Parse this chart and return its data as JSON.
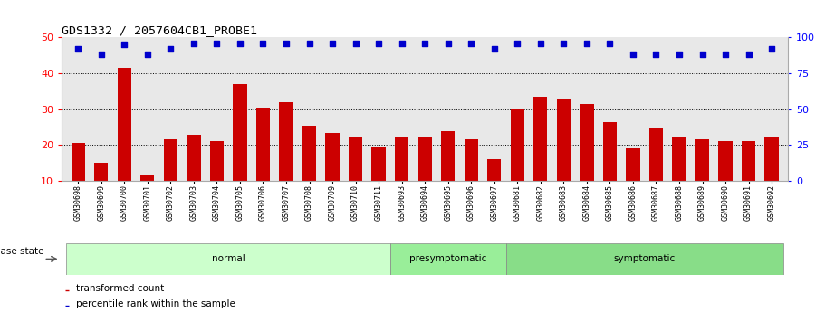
{
  "title": "GDS1332 / 2057604CB1_PROBE1",
  "samples": [
    "GSM30698",
    "GSM30699",
    "GSM30700",
    "GSM30701",
    "GSM30702",
    "GSM30703",
    "GSM30704",
    "GSM30705",
    "GSM30706",
    "GSM30707",
    "GSM30708",
    "GSM30709",
    "GSM30710",
    "GSM30711",
    "GSM30693",
    "GSM30694",
    "GSM30695",
    "GSM30696",
    "GSM30697",
    "GSM30681",
    "GSM30682",
    "GSM30683",
    "GSM30684",
    "GSM30685",
    "GSM30686",
    "GSM30687",
    "GSM30688",
    "GSM30689",
    "GSM30690",
    "GSM30691",
    "GSM30692"
  ],
  "transformed_count": [
    20.5,
    15.0,
    41.5,
    11.5,
    21.5,
    23.0,
    21.0,
    37.0,
    30.5,
    32.0,
    25.5,
    23.5,
    22.5,
    19.5,
    22.0,
    22.5,
    24.0,
    21.5,
    16.0,
    30.0,
    33.5,
    33.0,
    31.5,
    26.5,
    19.0,
    25.0,
    22.5,
    21.5,
    21.0,
    21.0,
    22.0
  ],
  "percentile_rank": [
    92,
    88,
    95,
    88,
    92,
    96,
    96,
    96,
    96,
    96,
    96,
    96,
    96,
    96,
    96,
    96,
    96,
    96,
    92,
    96,
    96,
    96,
    96,
    96,
    88,
    88,
    88,
    88,
    88,
    88,
    92
  ],
  "groups": [
    {
      "label": "normal",
      "start": 0,
      "end": 13,
      "color": "#ccffcc"
    },
    {
      "label": "presymptomatic",
      "start": 14,
      "end": 18,
      "color": "#99ee99"
    },
    {
      "label": "symptomatic",
      "start": 19,
      "end": 30,
      "color": "#88dd88"
    }
  ],
  "bar_color": "#cc0000",
  "dot_color": "#0000cc",
  "ylim_left": [
    10,
    50
  ],
  "ylim_right": [
    0,
    100
  ],
  "yticks_left": [
    10,
    20,
    30,
    40,
    50
  ],
  "yticks_right": [
    0,
    25,
    50,
    75,
    100
  ],
  "dotted_lines": [
    20,
    30,
    40
  ],
  "plot_bg_color": "#e8e8e8",
  "disease_state_label": "disease state",
  "legend_bar": "transformed count",
  "legend_dot": "percentile rank within the sample"
}
